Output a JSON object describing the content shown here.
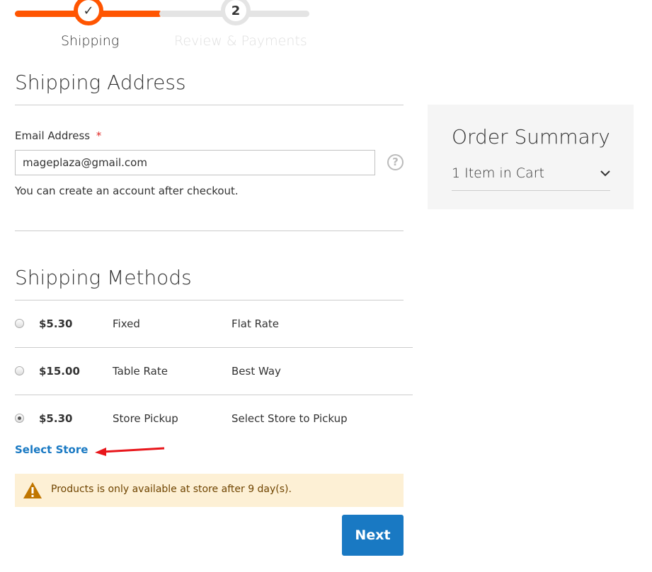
{
  "progress": {
    "steps": [
      {
        "label": "Shipping",
        "number": "✓",
        "active": true
      },
      {
        "label": "Review & Payments",
        "number": "2",
        "active": false
      }
    ],
    "accent": "#ff5501"
  },
  "shipping_address": {
    "title": "Shipping Address",
    "email_label": "Email Address",
    "required_mark": "*",
    "email_value": "mageplaza@gmail.com",
    "note": "You can create an account after checkout.",
    "help_icon": "?"
  },
  "shipping_methods": {
    "title": "Shipping Methods",
    "rows": [
      {
        "price": "$5.30",
        "method": "Fixed",
        "carrier": "Flat Rate",
        "selected": false
      },
      {
        "price": "$15.00",
        "method": "Table Rate",
        "carrier": "Best Way",
        "selected": false
      },
      {
        "price": "$5.30",
        "method": "Store Pickup",
        "carrier": "Select Store to Pickup",
        "selected": true
      }
    ],
    "select_store": "Select Store",
    "warning": "Products is only available at store after 9 day(s).",
    "next": "Next"
  },
  "order_summary": {
    "title": "Order Summary",
    "items": "1 Item in Cart"
  }
}
